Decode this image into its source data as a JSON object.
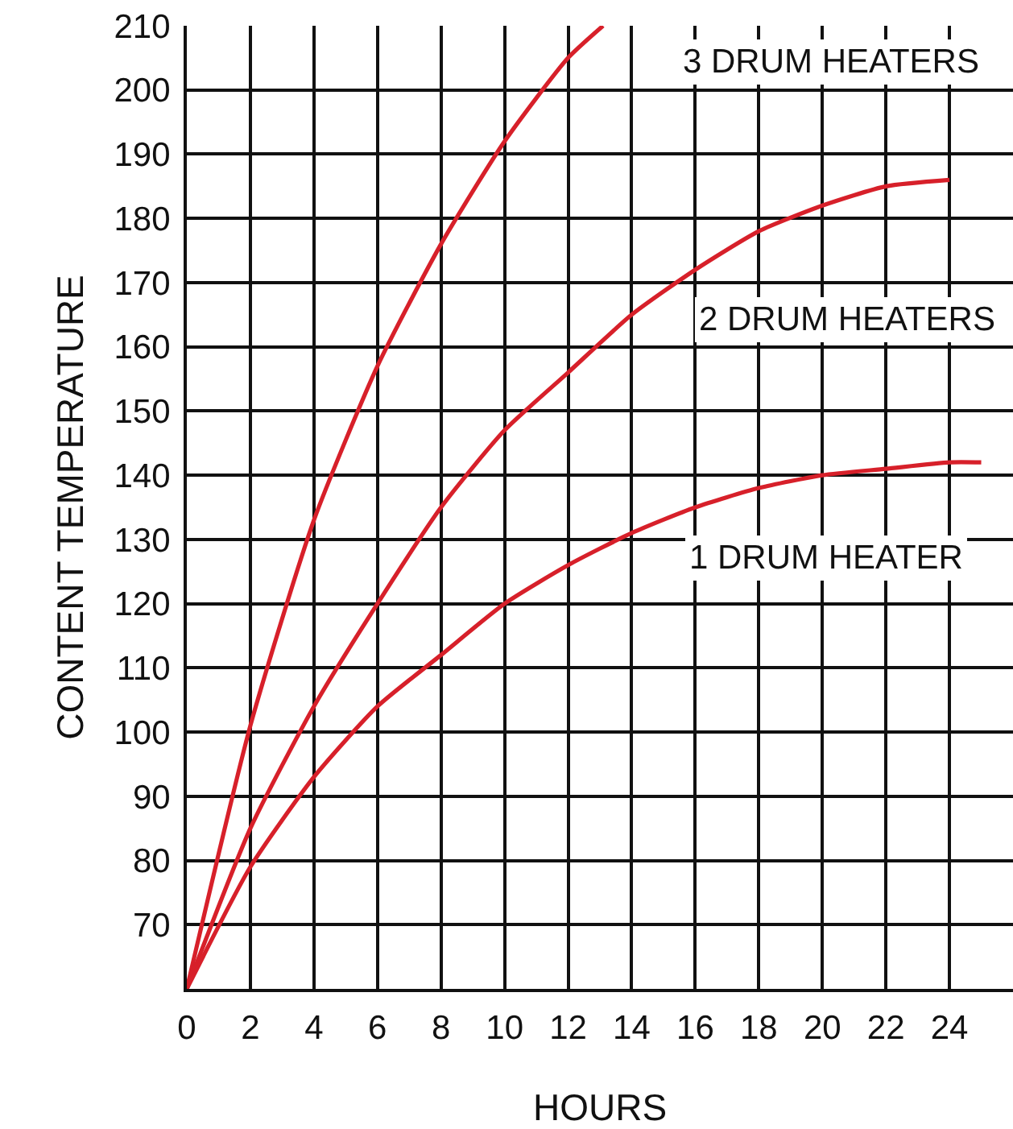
{
  "chart_data": {
    "type": "line",
    "xlabel": "HOURS",
    "ylabel": "CONTENT TEMPERATURE",
    "xlim": [
      0,
      26
    ],
    "xticks": [
      0,
      2,
      4,
      6,
      8,
      10,
      12,
      14,
      16,
      18,
      20,
      22,
      24
    ],
    "ylim": [
      60,
      210
    ],
    "yticks": [
      70,
      80,
      90,
      100,
      110,
      120,
      130,
      140,
      150,
      160,
      170,
      180,
      190,
      200,
      210
    ],
    "grid": true,
    "legend": false,
    "marker": "none",
    "line_style": "solid",
    "series": [
      {
        "name": "3 DRUM HEATERS",
        "color": "#d7202a",
        "x": [
          0,
          2,
          4,
          6,
          8,
          10,
          12,
          13.1
        ],
        "values": [
          60,
          101,
          133,
          157,
          176,
          192,
          205,
          210
        ]
      },
      {
        "name": "2 DRUM HEATERS",
        "color": "#d7202a",
        "x": [
          0,
          2,
          4,
          6,
          8,
          10,
          12,
          14,
          16,
          18,
          20,
          22,
          24
        ],
        "values": [
          60,
          85,
          104,
          120,
          135,
          147,
          156,
          165,
          172,
          178,
          182,
          185,
          186
        ]
      },
      {
        "name": "1 DRUM HEATER",
        "color": "#d7202a",
        "x": [
          0,
          2,
          4,
          6,
          8,
          10,
          12,
          14,
          16,
          18,
          20,
          22,
          24,
          25
        ],
        "values": [
          60,
          79,
          93,
          104,
          112,
          120,
          126,
          131,
          135,
          138,
          140,
          141,
          142,
          142
        ]
      }
    ]
  }
}
